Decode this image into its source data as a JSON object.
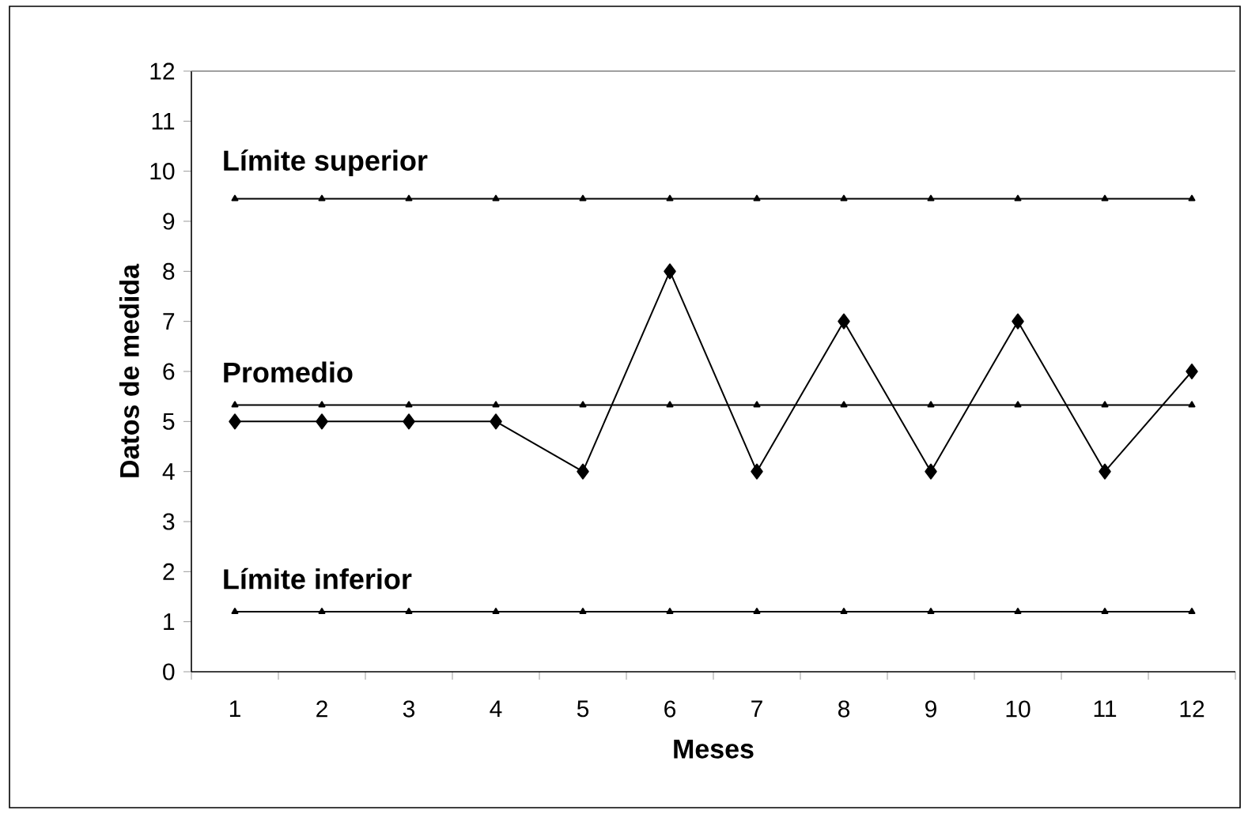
{
  "chart_data": {
    "type": "line",
    "xlabel": "Meses",
    "ylabel": "Datos de medida",
    "categories": [
      "1",
      "2",
      "3",
      "4",
      "5",
      "6",
      "7",
      "8",
      "9",
      "10",
      "11",
      "12"
    ],
    "ylim": [
      0,
      12
    ],
    "legend": "left",
    "yticks": [
      0,
      1,
      2,
      3,
      4,
      5,
      6,
      7,
      8,
      9,
      10,
      11,
      12
    ],
    "series": [
      {
        "color": "#000000",
        "marker": "diamond",
        "values": [
          5,
          5,
          5,
          5,
          4,
          8,
          4,
          7,
          4,
          7,
          4,
          6
        ]
      },
      {
        "name": "Límite superior",
        "color": "#000000",
        "marker": "triangle",
        "values": [
          9.45,
          9.45,
          9.45,
          9.45,
          9.45,
          9.45,
          9.45,
          9.45,
          9.45,
          9.45,
          9.45,
          9.45
        ]
      },
      {
        "name": "Promedio",
        "color": "#000000",
        "marker": "triangle",
        "values": [
          5.33,
          5.33,
          5.33,
          5.33,
          5.33,
          5.33,
          5.33,
          5.33,
          5.33,
          5.33,
          5.33,
          5.33
        ]
      },
      {
        "name": "Límite inferior",
        "color": "#000000",
        "marker": "triangle",
        "values": [
          1.2,
          1.2,
          1.2,
          1.2,
          1.2,
          1.2,
          1.2,
          1.2,
          1.2,
          1.2,
          1.2,
          1.2
        ]
      }
    ]
  }
}
